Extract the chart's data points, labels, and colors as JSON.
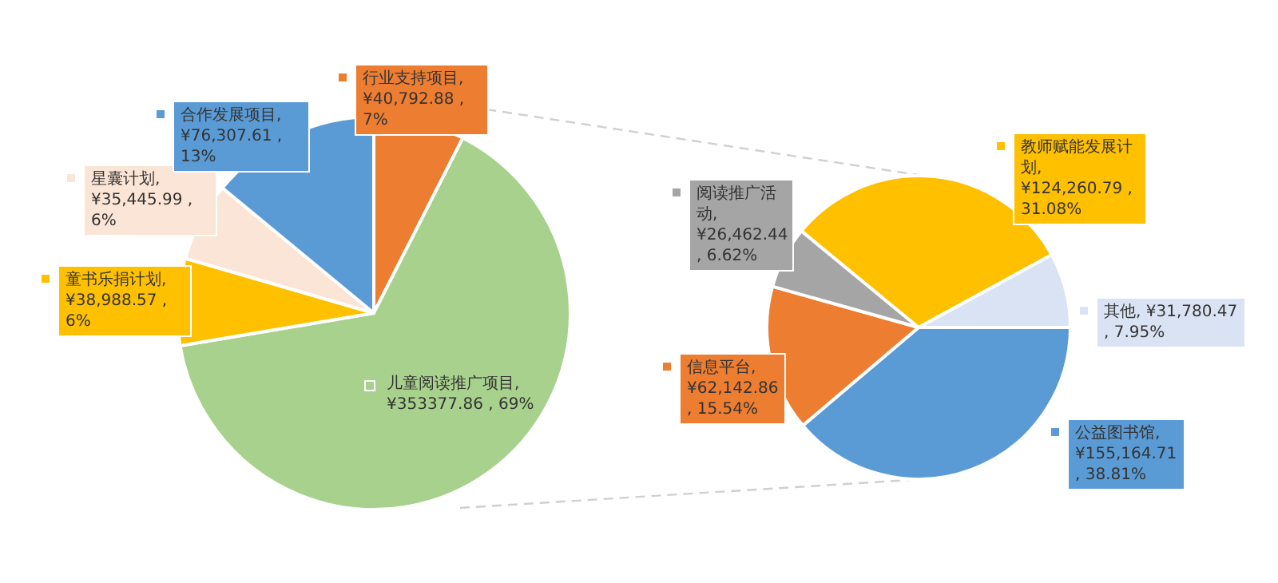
{
  "chart_data": [
    {
      "type": "pie",
      "categories": [
        "行业支持项目",
        "儿童阅读推广项目",
        "童书乐捐计划",
        "星囊计划",
        "合作发展项目"
      ],
      "values": [
        40792.88,
        353377.86,
        38988.57,
        35445.99,
        76307.61
      ],
      "colors": [
        "#ed7d31",
        "#a9d18e",
        "#ffc000",
        "#fbe5d6",
        "#5b9bd5"
      ],
      "legend": "left",
      "value_labels": [
        ", ¥40,792.88 , 7%",
        ", ¥353377.86 , 69%",
        ", ¥38,988.57 , 6%",
        ", ¥35,445.99 , 6%",
        ", ¥76,307.61 , 13%"
      ]
    },
    {
      "type": "pie",
      "categories": [
        "公益图书馆",
        "信息平台",
        "阅读推广活动",
        "教师赋能发展计划",
        "其他"
      ],
      "values": [
        155164.71,
        62142.86,
        26462.44,
        124260.79,
        31780.47
      ],
      "colors": [
        "#5b9bd5",
        "#ed7d31",
        "#a5a5a5",
        "#ffc000",
        "#dae3f3"
      ],
      "legend": "right",
      "value_labels": [
        ", ¥155,164.71 , 38.81%",
        ", ¥62,142.86 , 15.54%",
        ", ¥26,462.44 , 6.62%",
        ", ¥124,260.79 , 31.08%",
        ", ¥31,780.47 , 7.95%"
      ]
    }
  ]
}
